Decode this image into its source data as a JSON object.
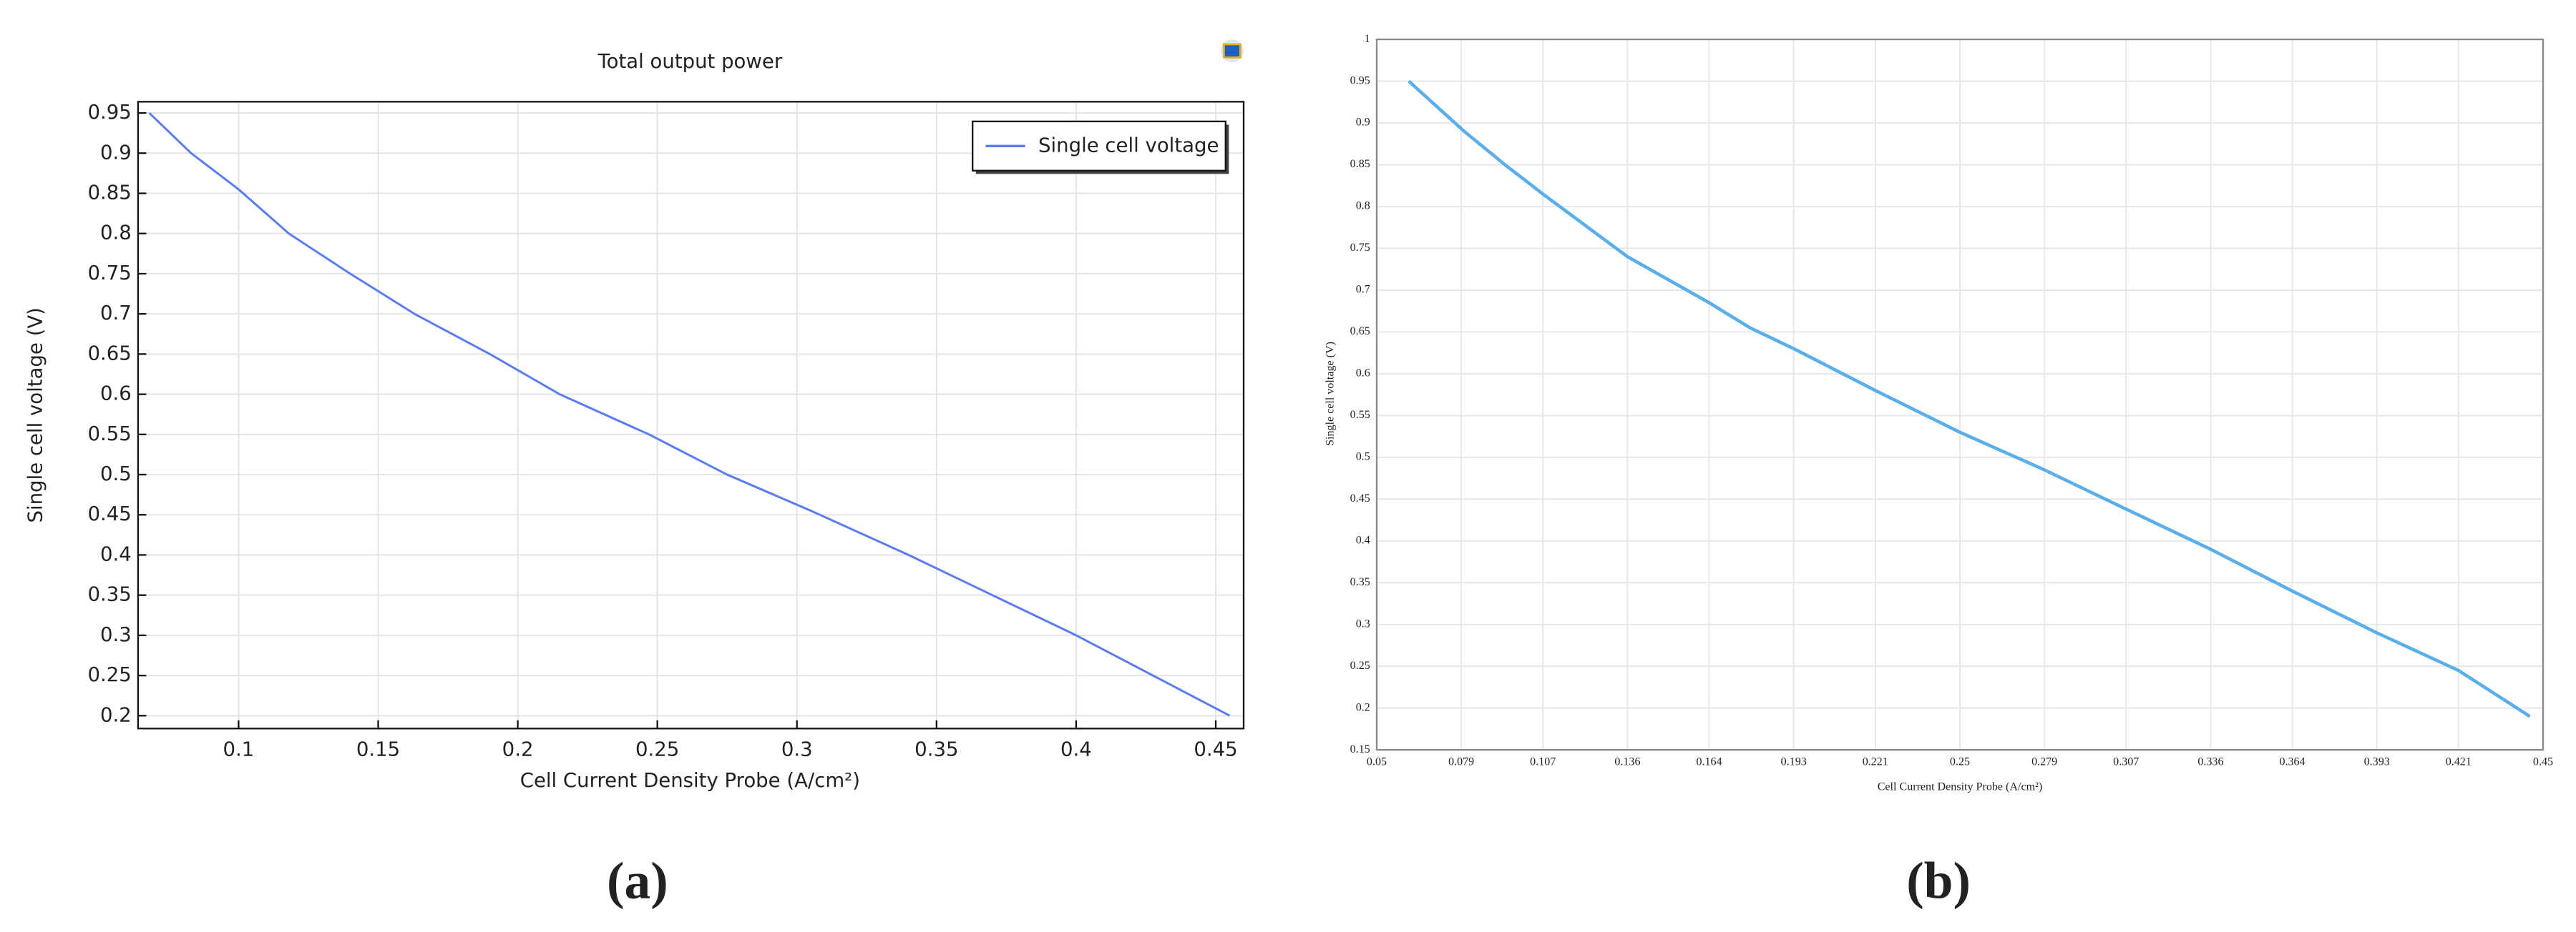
{
  "chart_data": [
    {
      "type": "line",
      "title": "Total output power",
      "caption": "(a)",
      "xlabel": "Cell Current Density Probe (A/cm²)",
      "ylabel": "Single cell voltage (V)",
      "x": [
        0.068,
        0.083,
        0.1,
        0.118,
        0.14,
        0.163,
        0.19,
        0.215,
        0.247,
        0.275,
        0.305,
        0.34,
        0.37,
        0.4,
        0.455
      ],
      "series": [
        {
          "name": "Single cell voltage",
          "color": "#5b7cf0",
          "values": [
            0.95,
            0.9,
            0.855,
            0.8,
            0.75,
            0.7,
            0.65,
            0.6,
            0.55,
            0.5,
            0.455,
            0.4,
            0.35,
            0.3,
            0.2
          ]
        }
      ],
      "xlim": [
        0.064,
        0.46
      ],
      "ylim": [
        0.184,
        0.964
      ],
      "xticks": [
        0.1,
        0.15,
        0.2,
        0.25,
        0.3,
        0.35,
        0.4,
        0.45
      ],
      "yticks": [
        0.2,
        0.25,
        0.3,
        0.35,
        0.4,
        0.45,
        0.5,
        0.55,
        0.6,
        0.65,
        0.7,
        0.75,
        0.8,
        0.85,
        0.9,
        0.95
      ],
      "grid": true,
      "legend": "top-right"
    },
    {
      "type": "line",
      "caption": "(b)",
      "xlabel": "Cell Current Density Probe (A/cm²)",
      "ylabel": "Single cell voltage (V)",
      "x": [
        0.061,
        0.08,
        0.094,
        0.107,
        0.136,
        0.164,
        0.178,
        0.193,
        0.221,
        0.25,
        0.279,
        0.307,
        0.336,
        0.364,
        0.393,
        0.421,
        0.4455
      ],
      "series": [
        {
          "color": "#5aaeea",
          "values": [
            0.95,
            0.89,
            0.85,
            0.815,
            0.74,
            0.685,
            0.655,
            0.63,
            0.58,
            0.53,
            0.485,
            0.438,
            0.39,
            0.34,
            0.29,
            0.245,
            0.19
          ]
        }
      ],
      "xlim": [
        0.05,
        0.45
      ],
      "ylim": [
        0.15,
        1
      ],
      "xticks": [
        0.05,
        0.079,
        0.107,
        0.136,
        0.164,
        0.193,
        0.221,
        0.25,
        0.279,
        0.307,
        0.336,
        0.364,
        0.393,
        0.421,
        0.45
      ],
      "yticks": [
        0.15,
        0.2,
        0.25,
        0.3,
        0.35,
        0.4,
        0.45,
        0.5,
        0.55,
        0.6,
        0.65,
        0.7,
        0.75,
        0.8,
        0.85,
        0.9,
        0.95,
        1
      ],
      "grid": true
    }
  ]
}
